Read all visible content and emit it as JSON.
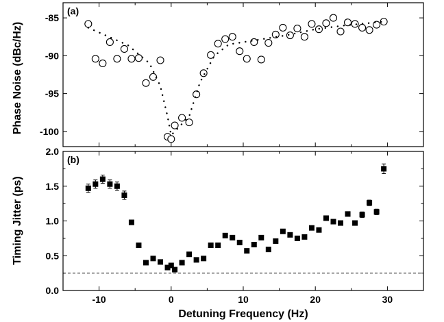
{
  "chart_data": [
    {
      "type": "scatter",
      "panel_label": "(a)",
      "ylabel": "Phase Noise (dBc/Hz)",
      "xlim": [
        -15,
        35
      ],
      "ylim": [
        -102,
        -83
      ],
      "xticks": [
        -10,
        0,
        10,
        20,
        30
      ],
      "yticks": [
        -100,
        -95,
        -90,
        -85
      ],
      "grid": false,
      "series": [
        {
          "marker": "open-circle",
          "points": [
            [
              -11.5,
              -85.8
            ],
            [
              -10.5,
              -90.4
            ],
            [
              -9.5,
              -91.0
            ],
            [
              -8.5,
              -88.2
            ],
            [
              -7.5,
              -90.4
            ],
            [
              -6.5,
              -89.1
            ],
            [
              -5.5,
              -90.4
            ],
            [
              -4.5,
              -90.3
            ],
            [
              -3.5,
              -93.6
            ],
            [
              -2.5,
              -92.8
            ],
            [
              -1.5,
              -90.6
            ],
            [
              -0.5,
              -100.7
            ],
            [
              0.0,
              -101.0
            ],
            [
              0.5,
              -99.2
            ],
            [
              1.5,
              -98.2
            ],
            [
              2.5,
              -98.8
            ],
            [
              3.5,
              -95.1
            ],
            [
              4.5,
              -92.3
            ],
            [
              5.5,
              -89.9
            ],
            [
              6.5,
              -88.4
            ],
            [
              7.5,
              -87.8
            ],
            [
              8.5,
              -87.5
            ],
            [
              9.5,
              -89.4
            ],
            [
              10.5,
              -90.4
            ],
            [
              11.5,
              -88.2
            ],
            [
              12.5,
              -90.5
            ],
            [
              13.5,
              -88.3
            ],
            [
              14.5,
              -87.2
            ],
            [
              15.5,
              -86.3
            ],
            [
              16.5,
              -87.3
            ],
            [
              17.5,
              -86.4
            ],
            [
              18.5,
              -87.5
            ],
            [
              19.5,
              -85.8
            ],
            [
              20.5,
              -86.5
            ],
            [
              21.5,
              -85.7
            ],
            [
              22.5,
              -85.0
            ],
            [
              23.5,
              -86.8
            ],
            [
              24.5,
              -85.6
            ],
            [
              25.5,
              -85.8
            ],
            [
              26.5,
              -86.3
            ],
            [
              27.5,
              -86.6
            ],
            [
              28.5,
              -85.9
            ],
            [
              29.5,
              -85.5
            ]
          ]
        },
        {
          "marker": "dotted-line",
          "points": [
            [
              -11.5,
              -86.3
            ],
            [
              -6,
              -88.6
            ],
            [
              -3,
              -91.0
            ],
            [
              -1.5,
              -94.0
            ],
            [
              -0.5,
              -98.0
            ],
            [
              0.0,
              -100.5
            ],
            [
              1.0,
              -99.5
            ],
            [
              2.5,
              -98.0
            ],
            [
              4.0,
              -93.5
            ],
            [
              6.0,
              -90.0
            ],
            [
              8.0,
              -88.5
            ],
            [
              12,
              -87.9
            ],
            [
              16,
              -87.3
            ],
            [
              20,
              -86.5
            ],
            [
              24,
              -86.0
            ],
            [
              29.5,
              -85.5
            ]
          ]
        }
      ]
    },
    {
      "type": "scatter",
      "panel_label": "(b)",
      "ylabel": "Timing Jitter (ps)",
      "xlabel": "Detuning Frequency (Hz)",
      "xlim": [
        -15,
        35
      ],
      "ylim": [
        0.0,
        2.0
      ],
      "xticks": [
        -10,
        0,
        10,
        20,
        30
      ],
      "yticks": [
        0.0,
        0.5,
        1.0,
        1.5,
        2.0
      ],
      "ytick_labels": [
        "0.0",
        "0.5",
        "1.0",
        "1.5",
        "2.0"
      ],
      "grid": false,
      "reference_line": {
        "style": "dashed",
        "y": 0.25
      },
      "series": [
        {
          "marker": "filled-square",
          "points": [
            [
              -11.5,
              1.47,
              0.06
            ],
            [
              -10.5,
              1.53,
              0.06
            ],
            [
              -9.5,
              1.6,
              0.06
            ],
            [
              -8.5,
              1.53,
              0.06
            ],
            [
              -7.5,
              1.5,
              0.06
            ],
            [
              -6.5,
              1.37,
              0.06
            ],
            [
              -5.5,
              0.98,
              0.03
            ],
            [
              -4.5,
              0.65,
              0.02
            ],
            [
              -3.5,
              0.4,
              0.02
            ],
            [
              -2.5,
              0.46,
              0.02
            ],
            [
              -1.5,
              0.41,
              0.02
            ],
            [
              -0.5,
              0.33,
              0.02
            ],
            [
              0.0,
              0.36,
              0.02
            ],
            [
              0.5,
              0.3,
              0.02
            ],
            [
              1.5,
              0.4,
              0.02
            ],
            [
              2.5,
              0.52,
              0.02
            ],
            [
              3.5,
              0.44,
              0.02
            ],
            [
              4.5,
              0.46,
              0.02
            ],
            [
              5.5,
              0.65,
              0.02
            ],
            [
              6.5,
              0.65,
              0.02
            ],
            [
              7.5,
              0.79,
              0.02
            ],
            [
              8.5,
              0.76,
              0.02
            ],
            [
              9.5,
              0.69,
              0.02
            ],
            [
              10.5,
              0.57,
              0.02
            ],
            [
              11.5,
              0.66,
              0.02
            ],
            [
              12.5,
              0.76,
              0.02
            ],
            [
              13.5,
              0.59,
              0.02
            ],
            [
              14.5,
              0.71,
              0.02
            ],
            [
              15.5,
              0.85,
              0.02
            ],
            [
              16.5,
              0.8,
              0.02
            ],
            [
              17.5,
              0.75,
              0.02
            ],
            [
              18.5,
              0.77,
              0.02
            ],
            [
              19.5,
              0.9,
              0.02
            ],
            [
              20.5,
              0.87,
              0.02
            ],
            [
              21.5,
              1.04,
              0.02
            ],
            [
              22.5,
              0.99,
              0.02
            ],
            [
              23.5,
              0.97,
              0.02
            ],
            [
              24.5,
              1.1,
              0.03
            ],
            [
              25.5,
              0.97,
              0.03
            ],
            [
              26.5,
              1.09,
              0.04
            ],
            [
              27.5,
              1.26,
              0.04
            ],
            [
              28.5,
              1.13,
              0.04
            ],
            [
              29.5,
              1.75,
              0.07
            ]
          ]
        }
      ]
    }
  ]
}
